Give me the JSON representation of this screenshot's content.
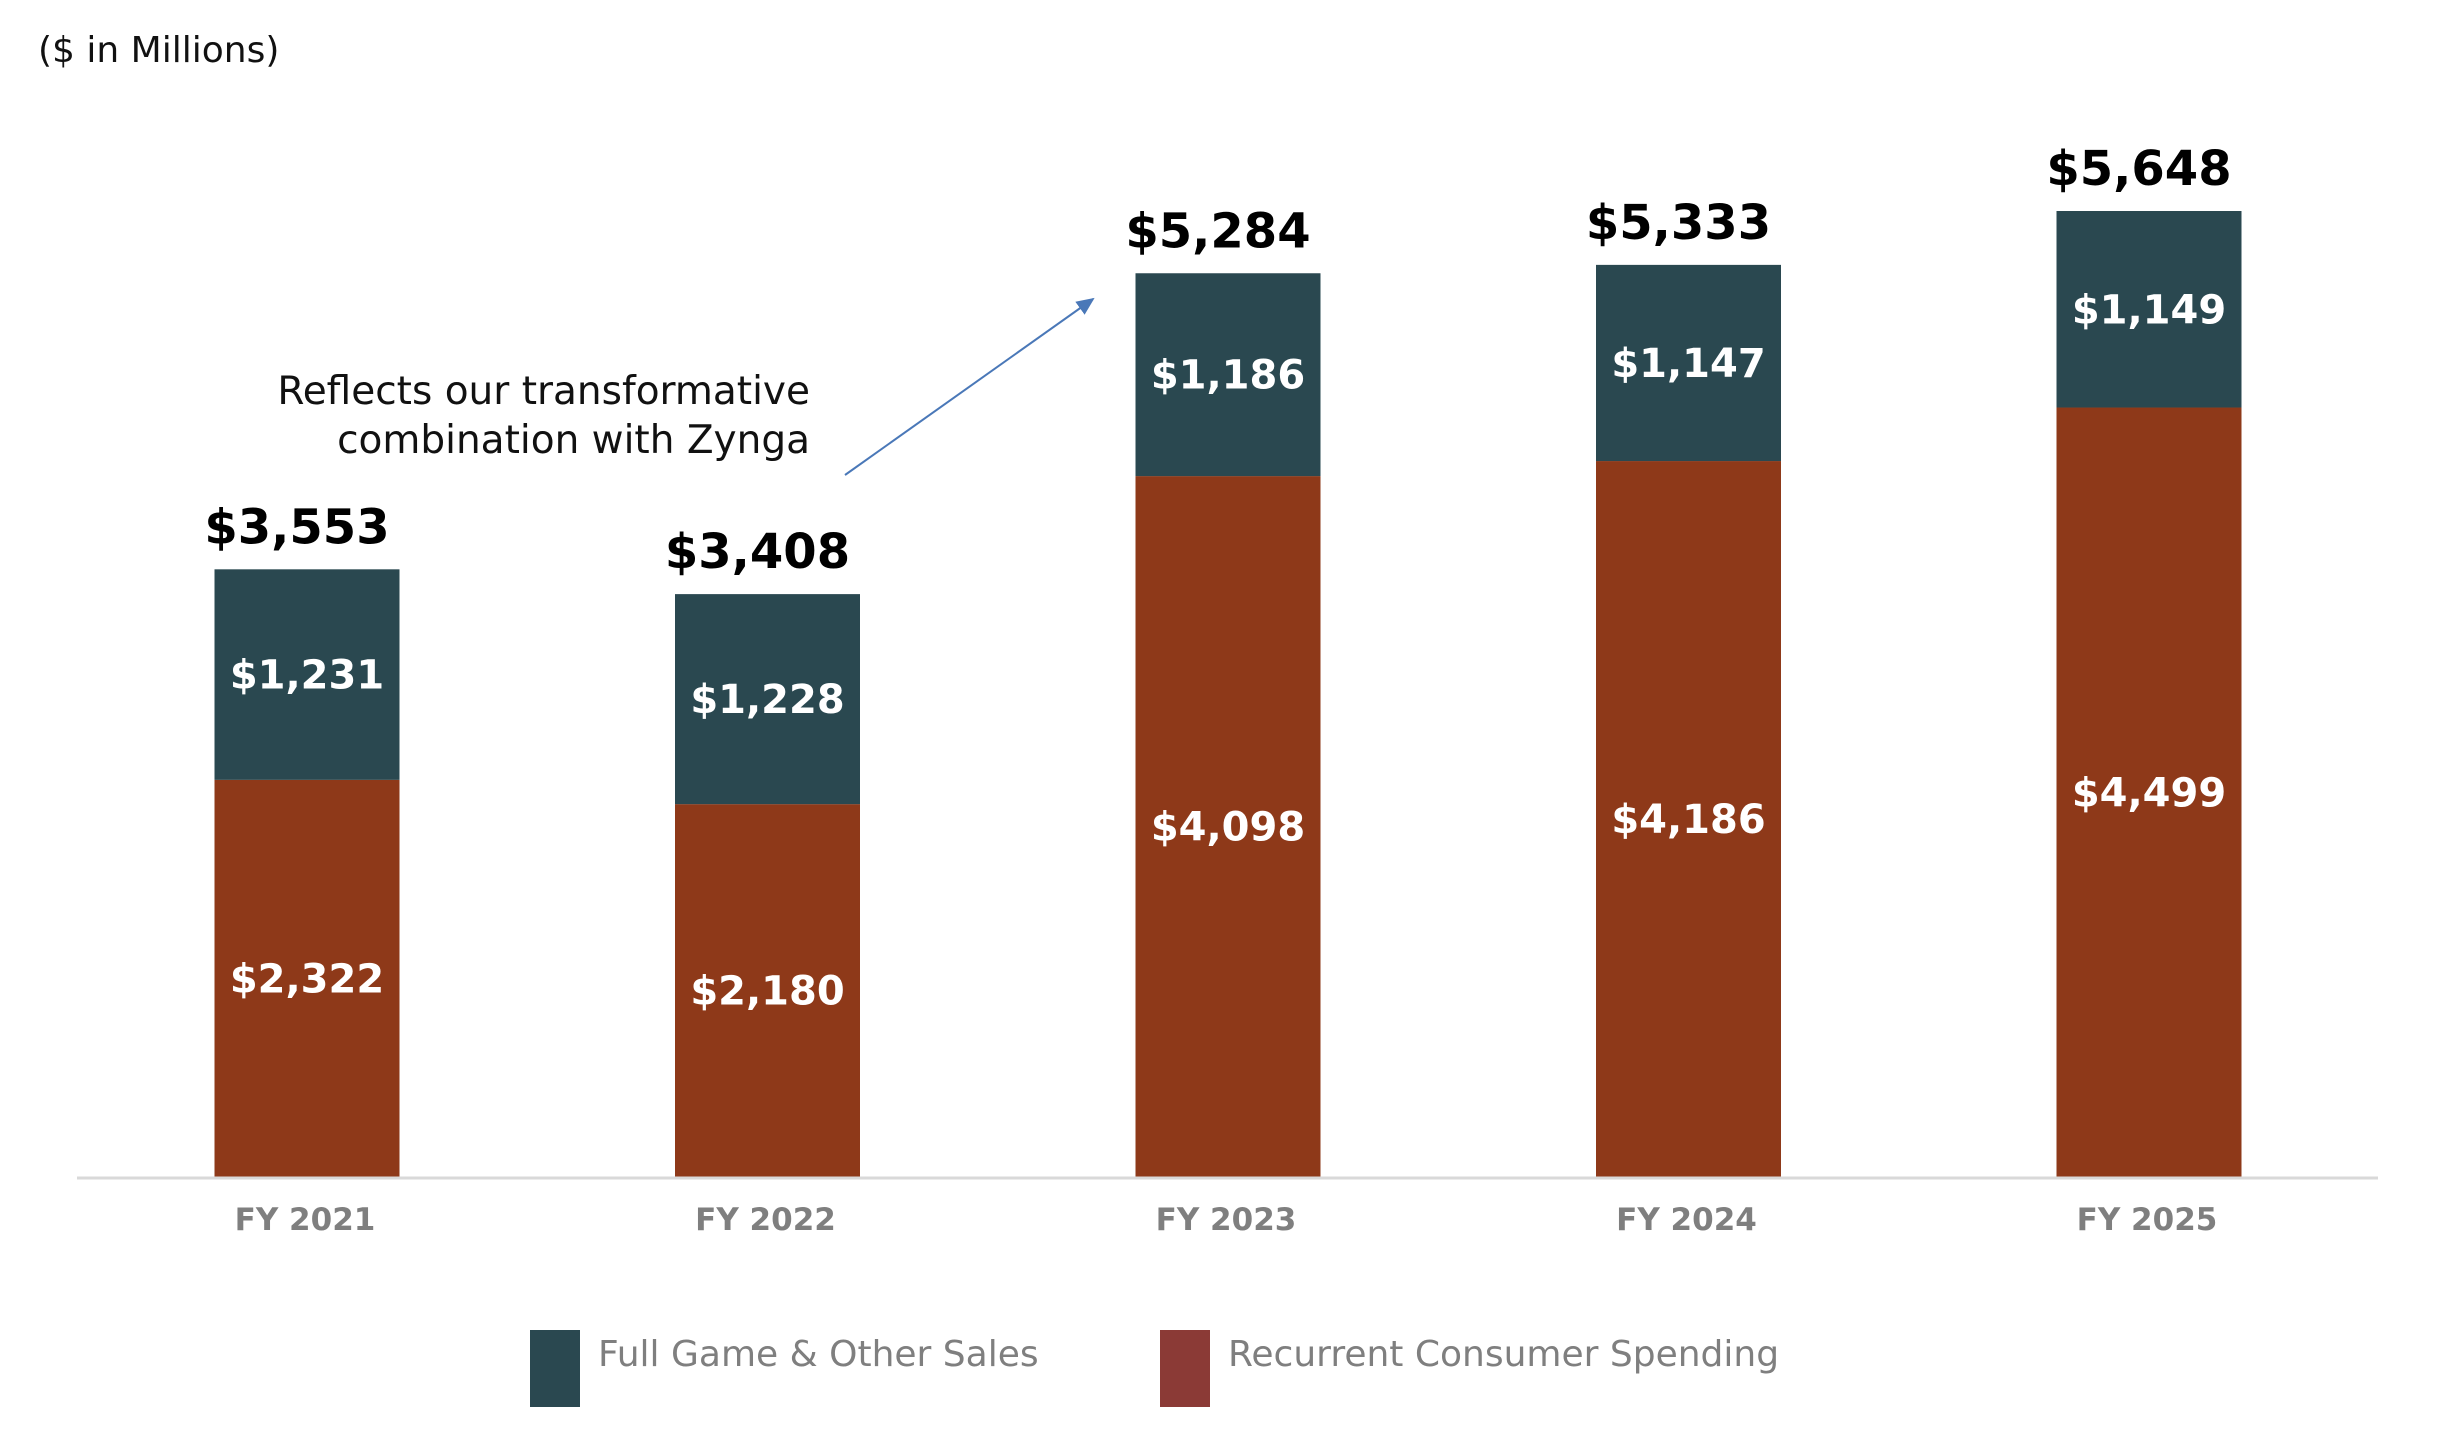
{
  "chart_data": {
    "type": "bar",
    "stacked": true,
    "unit_note": "($ in Millions)",
    "categories": [
      "FY 2021",
      "FY 2022",
      "FY 2023",
      "FY 2024",
      "FY 2025"
    ],
    "series": [
      {
        "name": "Recurrent Consumer Spending",
        "color": "#8e3919",
        "legend_color": "#8b3a36",
        "values": [
          2322,
          2180,
          4098,
          4186,
          4499
        ],
        "labels": [
          "$2,322",
          "$2,180",
          "$4,098",
          "$4,186",
          "$4,499"
        ]
      },
      {
        "name": "Full Game & Other Sales",
        "color": "#2a4850",
        "legend_color": "#2a4850",
        "values": [
          1231,
          1228,
          1186,
          1147,
          1149
        ],
        "labels": [
          "$1,231",
          "$1,228",
          "$1,186",
          "$1,147",
          "$1,149"
        ]
      }
    ],
    "totals": [
      3553,
      3408,
      5284,
      5333,
      5648
    ],
    "total_labels": [
      "$3,553",
      "$3,408",
      "$5,284",
      "$5,333",
      "$5,648"
    ],
    "ylim": [
      0,
      5648
    ],
    "grid": false,
    "legend_position": "bottom-center",
    "legend": [
      {
        "label": "Full Game & Other Sales",
        "color": "#2a4850"
      },
      {
        "label": "Recurrent Consumer Spending",
        "color": "#8b3a36"
      }
    ],
    "annotation": {
      "lines": [
        "Reflects our transformative",
        "combination with Zynga"
      ],
      "target_category": "FY 2023",
      "arrow_color": "#4a78b8"
    },
    "axis_color": "#d9d9d9"
  }
}
